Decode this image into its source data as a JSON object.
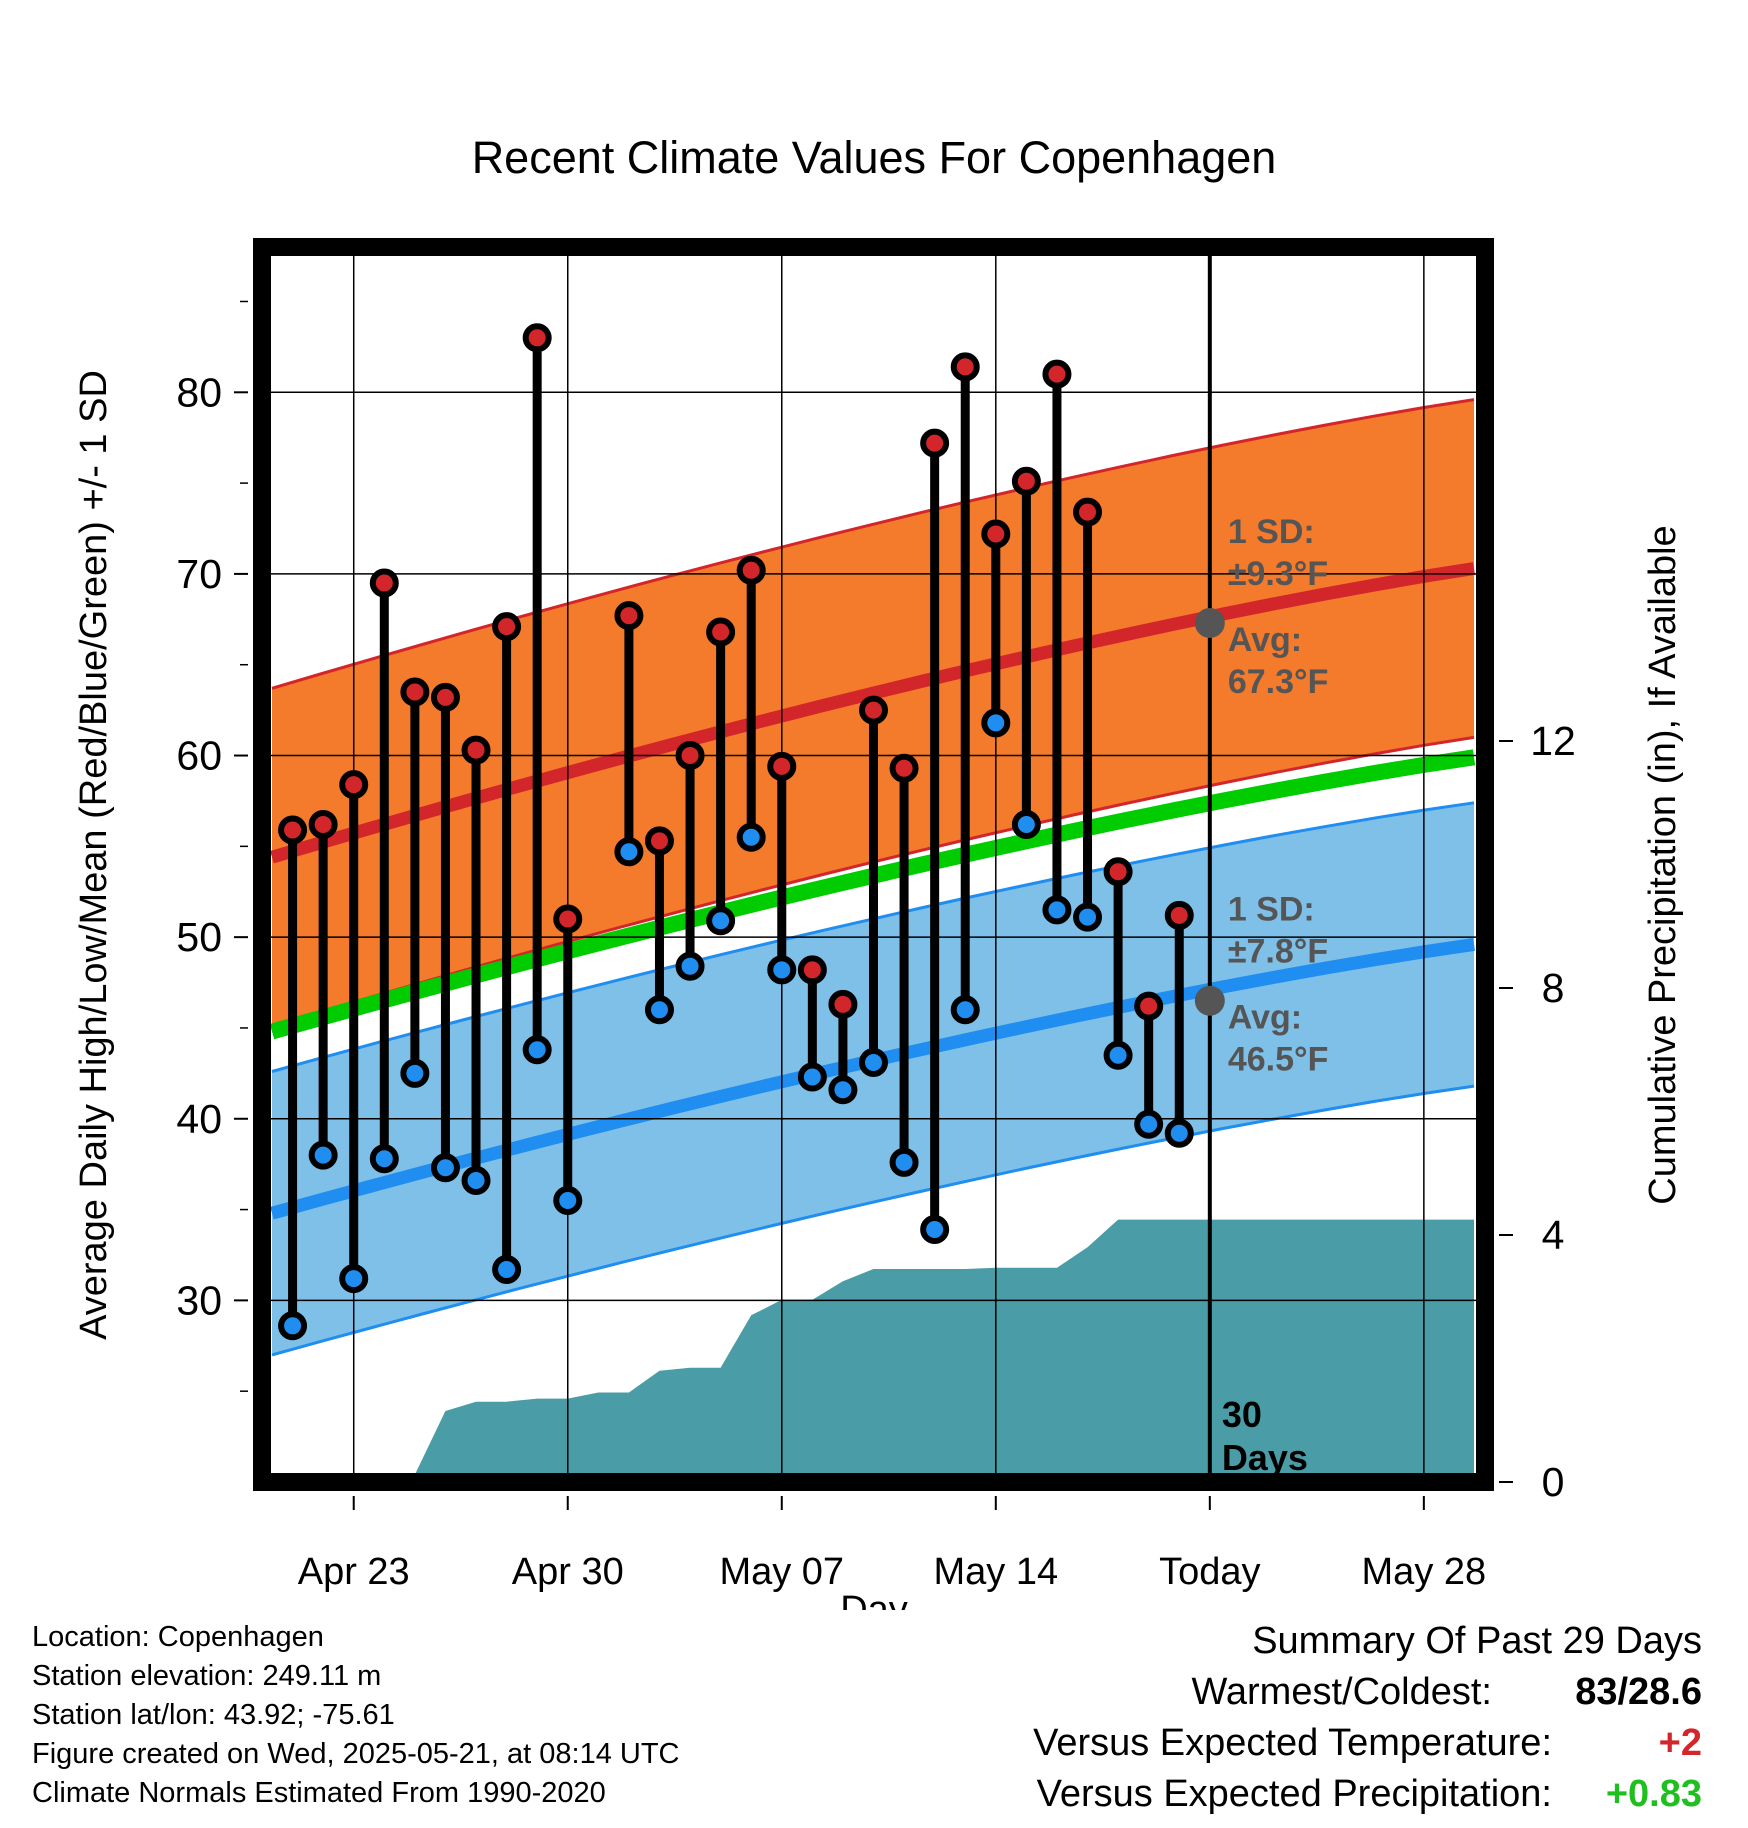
{
  "chart_data": {
    "type": "line",
    "title": "Recent Climate Values For Copenhagen",
    "xlabel": "Day",
    "ylabel": "Average Daily High/Low/Mean (Red/Blue/Green) +/- 1 SD",
    "y2label": "Cumulative Precipitation (in), If Available",
    "ylim": [
      20,
      88
    ],
    "y2lim": [
      0,
      20
    ],
    "x_tick_labels": [
      "Apr 23",
      "Apr 30",
      "May 07",
      "May 14",
      "Today",
      "May 28"
    ],
    "x_tick_dates": [
      "2025-04-23",
      "2025-04-30",
      "2025-05-07",
      "2025-05-14",
      "2025-05-21",
      "2025-05-28"
    ],
    "y_ticks": [
      30,
      40,
      50,
      60,
      70,
      80
    ],
    "y2_ticks": [
      0,
      4,
      8,
      12
    ],
    "xlim": [
      "2025-04-20",
      "2025-05-30"
    ],
    "grid": true,
    "today": "2025-05-21",
    "days": [
      "2025-04-20",
      "2025-04-21",
      "2025-04-22",
      "2025-04-23",
      "2025-04-24",
      "2025-04-25",
      "2025-04-26",
      "2025-04-27",
      "2025-04-28",
      "2025-04-29",
      "2025-04-30",
      "2025-05-01",
      "2025-05-02",
      "2025-05-03",
      "2025-05-04",
      "2025-05-05",
      "2025-05-06",
      "2025-05-07",
      "2025-05-08",
      "2025-05-09",
      "2025-05-10",
      "2025-05-11",
      "2025-05-12",
      "2025-05-13",
      "2025-05-14",
      "2025-05-15",
      "2025-05-16",
      "2025-05-17",
      "2025-05-18",
      "2025-05-19",
      "2025-05-20"
    ],
    "daily_high": [
      null,
      55.9,
      56.2,
      58.4,
      69.5,
      63.5,
      63.2,
      60.3,
      67.1,
      83.0,
      51.0,
      null,
      67.7,
      55.3,
      60.0,
      66.8,
      70.2,
      59.4,
      48.2,
      46.3,
      62.5,
      59.3,
      77.2,
      81.4,
      72.2,
      75.1,
      81.0,
      73.4,
      53.6,
      46.2,
      51.2
    ],
    "daily_low": [
      null,
      28.6,
      38.0,
      31.2,
      37.8,
      42.5,
      37.3,
      36.6,
      31.7,
      43.8,
      35.5,
      null,
      54.7,
      46.0,
      48.4,
      50.9,
      55.5,
      48.2,
      42.3,
      41.6,
      43.1,
      37.6,
      33.9,
      46.0,
      61.8,
      56.2,
      51.5,
      51.1,
      43.5,
      39.7,
      39.2
    ],
    "normal_high": {
      "start": 54.4,
      "end": 70.3
    },
    "normal_low": {
      "start": 34.8,
      "end": 49.6
    },
    "normal_mean": {
      "start": 44.8,
      "end": 59.9
    },
    "sd_high": 9.3,
    "sd_low": 7.8,
    "cumulative_precip": [
      null,
      0.05,
      0.05,
      0.05,
      0.12,
      0.12,
      1.15,
      1.3,
      1.3,
      1.35,
      1.35,
      1.45,
      1.45,
      1.8,
      1.85,
      1.85,
      2.7,
      2.95,
      2.95,
      3.25,
      3.45,
      3.45,
      3.45,
      3.45,
      3.47,
      3.47,
      3.47,
      3.8,
      4.25,
      4.25,
      4.25
    ],
    "colors": {
      "high_band": "#f47a2c",
      "high_line": "#d3262b",
      "low_band": "#7fc0e8",
      "low_line": "#1f8ef0",
      "mean_line": "#00cc00",
      "precip": "#4a9ca6",
      "high_marker": "#d3262b",
      "low_marker": "#1f8ef0",
      "today_marker": "#555555"
    },
    "annotations": {
      "high_sd_label": "1 SD:",
      "high_sd_value": "±9.3°F",
      "high_avg_label": "Avg:",
      "high_avg_value": "67.3°F",
      "high_avg": 67.3,
      "low_sd_label": "1 SD:",
      "low_sd_value": "±7.8°F",
      "low_avg_label": "Avg:",
      "low_avg_value": "46.5°F",
      "low_avg": 46.5,
      "window_line1": "30",
      "window_line2": "Days"
    }
  },
  "footer": {
    "location": "Location: Copenhagen",
    "elevation": "Station elevation: 249.11 m",
    "latlon": "Station lat/lon: 43.92; -75.61",
    "created": "Figure created on Wed, 2025-05-21, at 08:14 UTC",
    "normals": "Climate Normals Estimated From 1990-2020"
  },
  "summary": {
    "title": "Summary Of Past 29 Days",
    "warm_cold_label": "Warmest/Coldest:",
    "warm_cold_value": "83/28.6",
    "temp_label": "Versus Expected Temperature:",
    "temp_value": "+2",
    "temp_color": "#d3262b",
    "precip_label": "Versus Expected Precipitation:",
    "precip_value": "+0.83",
    "precip_color": "#1fbf1f"
  }
}
